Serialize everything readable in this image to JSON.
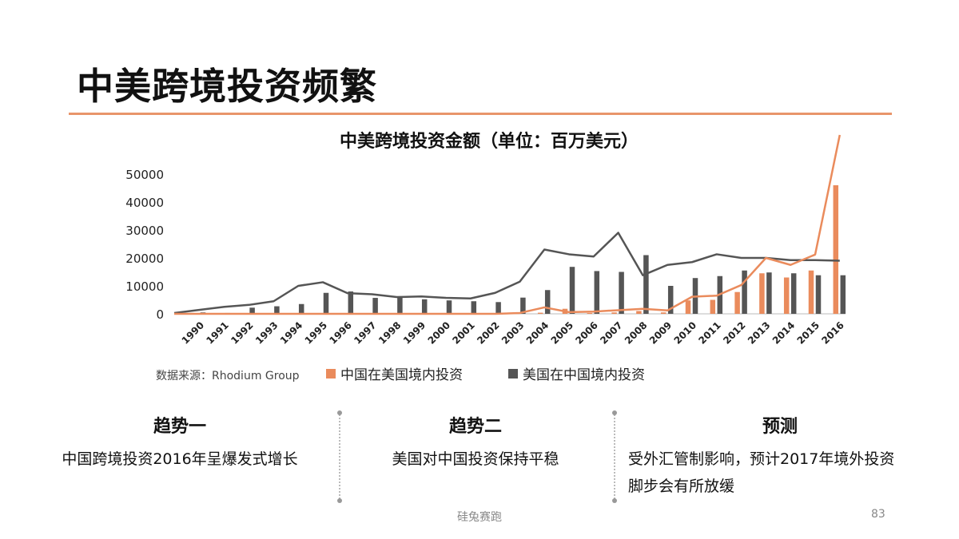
{
  "slide": {
    "title": "中美跨境投资频繁",
    "accent_color": "#e8956a",
    "footer": "硅兔赛跑",
    "page_number": "83"
  },
  "chart_data": {
    "type": "bar",
    "title": "中美跨境投资金额（单位：百万美元）",
    "categories": [
      "1990",
      "1991",
      "1992",
      "1993",
      "1994",
      "1995",
      "1996",
      "1997",
      "1998",
      "1999",
      "2000",
      "2001",
      "2002",
      "2003",
      "2004",
      "2005",
      "2006",
      "2007",
      "2008",
      "2009",
      "2010",
      "2011",
      "2012",
      "2013",
      "2014",
      "2015",
      "2016"
    ],
    "yticks": [
      "0",
      "10000",
      "20000",
      "30000",
      "40000",
      "50000"
    ],
    "ylim": [
      0,
      50000
    ],
    "series": [
      {
        "name": "中国在美国境内投资",
        "color": "#ea8b5c",
        "values": [
          0,
          0,
          0,
          0,
          0,
          0,
          0,
          0,
          0,
          0,
          0,
          0,
          0,
          100,
          400,
          1800,
          300,
          500,
          1000,
          500,
          4800,
          5000,
          7800,
          14500,
          13000,
          15500,
          46000
        ]
      },
      {
        "name": "美国在中国境内投资",
        "color": "#555555",
        "values": [
          500,
          300,
          2200,
          2700,
          3500,
          7500,
          8000,
          5700,
          5800,
          5200,
          4800,
          4500,
          4200,
          5800,
          8500,
          16800,
          15300,
          15000,
          21000,
          10000,
          12800,
          13500,
          15500,
          14800,
          14500,
          13800,
          13800
        ]
      }
    ],
    "line_series": [
      {
        "color": "#555555",
        "values": [
          300,
          2500,
          3200,
          4500,
          10000,
          11300,
          7400,
          7000,
          6000,
          6200,
          5700,
          5500,
          7500,
          11500,
          23000,
          21300,
          20500,
          29000,
          13800,
          17500,
          18500,
          21300,
          20000,
          20000,
          19200,
          19200,
          19000
        ]
      },
      {
        "color": "#ea8b5c",
        "values": [
          0,
          0,
          0,
          0,
          0,
          0,
          0,
          0,
          0,
          0,
          0,
          0,
          0,
          300,
          2300,
          600,
          800,
          1300,
          1800,
          1200,
          6100,
          6500,
          10300,
          20000,
          17500,
          21200,
          64000
        ]
      }
    ],
    "source": "数据来源：Rhodium Group",
    "legend": [
      {
        "label": "中国在美国境内投资",
        "color": "#ea8b5c"
      },
      {
        "label": "美国在中国境内投资",
        "color": "#555555"
      }
    ]
  },
  "columns": [
    {
      "heading": "趋势一",
      "text": "中国跨境投资2016年呈爆发式增长"
    },
    {
      "heading": "趋势二",
      "text": "美国对中国投资保持平稳"
    },
    {
      "heading": "预测",
      "text_line1": "受外汇管制影响，预计2017年境外投资",
      "text_line2": "脚步会有所放缓"
    }
  ]
}
